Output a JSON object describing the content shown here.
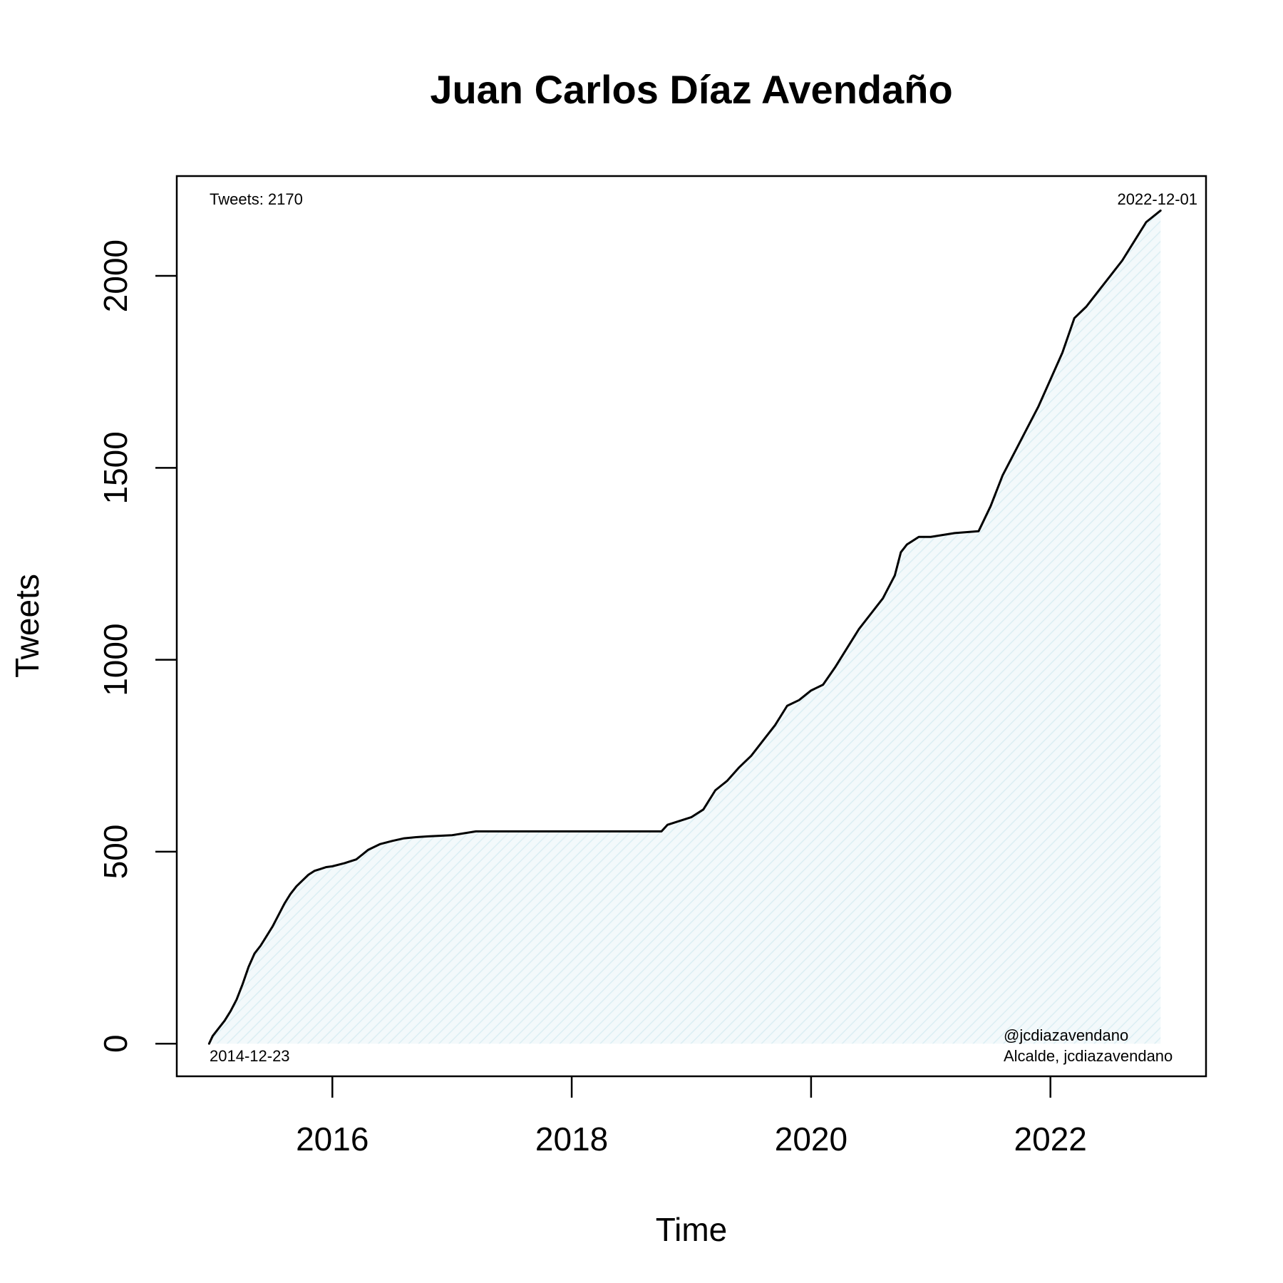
{
  "chart_data": {
    "type": "area",
    "title": "Juan Carlos Díaz Avendaño",
    "xlabel": "Time",
    "ylabel": "Tweets",
    "xlim": [
      2014.7,
      2023.3
    ],
    "ylim": [
      -85,
      2260
    ],
    "x_ticks": [
      2016,
      2018,
      2020,
      2022
    ],
    "y_ticks": [
      0,
      500,
      1000,
      1500,
      2000
    ],
    "annotations": {
      "top_left": "Tweets: 2170",
      "top_right": "2022-12-01",
      "bottom_left": "2014-12-23",
      "bottom_right_1": "@jcdiazavendano",
      "bottom_right_2": "Alcalde, jcdiazavendano"
    },
    "fill_color": "#eef6f8",
    "line_color": "#000000",
    "series": [
      {
        "x": [
          2014.97,
          2015.0,
          2015.05,
          2015.1,
          2015.15,
          2015.2,
          2015.25,
          2015.3,
          2015.35,
          2015.4,
          2015.45,
          2015.5,
          2015.55,
          2015.6,
          2015.65,
          2015.7,
          2015.75,
          2015.8,
          2015.85,
          2015.9,
          2015.95,
          2016.0,
          2016.1,
          2016.2,
          2016.3,
          2016.4,
          2016.5,
          2016.6,
          2016.7,
          2016.8,
          2017.0,
          2017.2,
          2017.4,
          2017.6,
          2017.8,
          2018.0,
          2018.2,
          2018.4,
          2018.6,
          2018.75,
          2018.8,
          2018.9,
          2019.0,
          2019.1,
          2019.2,
          2019.3,
          2019.4,
          2019.5,
          2019.6,
          2019.7,
          2019.8,
          2019.9,
          2020.0,
          2020.1,
          2020.2,
          2020.3,
          2020.4,
          2020.5,
          2020.6,
          2020.7,
          2020.75,
          2020.8,
          2020.9,
          2021.0,
          2021.2,
          2021.4,
          2021.5,
          2021.6,
          2021.7,
          2021.8,
          2021.9,
          2022.0,
          2022.1,
          2022.2,
          2022.3,
          2022.4,
          2022.5,
          2022.6,
          2022.7,
          2022.8,
          2022.92
        ],
        "y": [
          0,
          20,
          40,
          60,
          85,
          115,
          155,
          200,
          235,
          255,
          280,
          305,
          335,
          365,
          390,
          410,
          425,
          440,
          450,
          455,
          460,
          462,
          470,
          480,
          505,
          520,
          528,
          535,
          538,
          540,
          543,
          553,
          553,
          553,
          553,
          553,
          553,
          553,
          553,
          553,
          570,
          580,
          590,
          610,
          660,
          685,
          720,
          750,
          790,
          830,
          880,
          895,
          920,
          935,
          980,
          1030,
          1080,
          1120,
          1160,
          1220,
          1280,
          1300,
          1320,
          1320,
          1330,
          1335,
          1400,
          1480,
          1540,
          1600,
          1660,
          1730,
          1800,
          1890,
          1920,
          1960,
          2000,
          2040,
          2090,
          2140,
          2170
        ]
      }
    ]
  }
}
